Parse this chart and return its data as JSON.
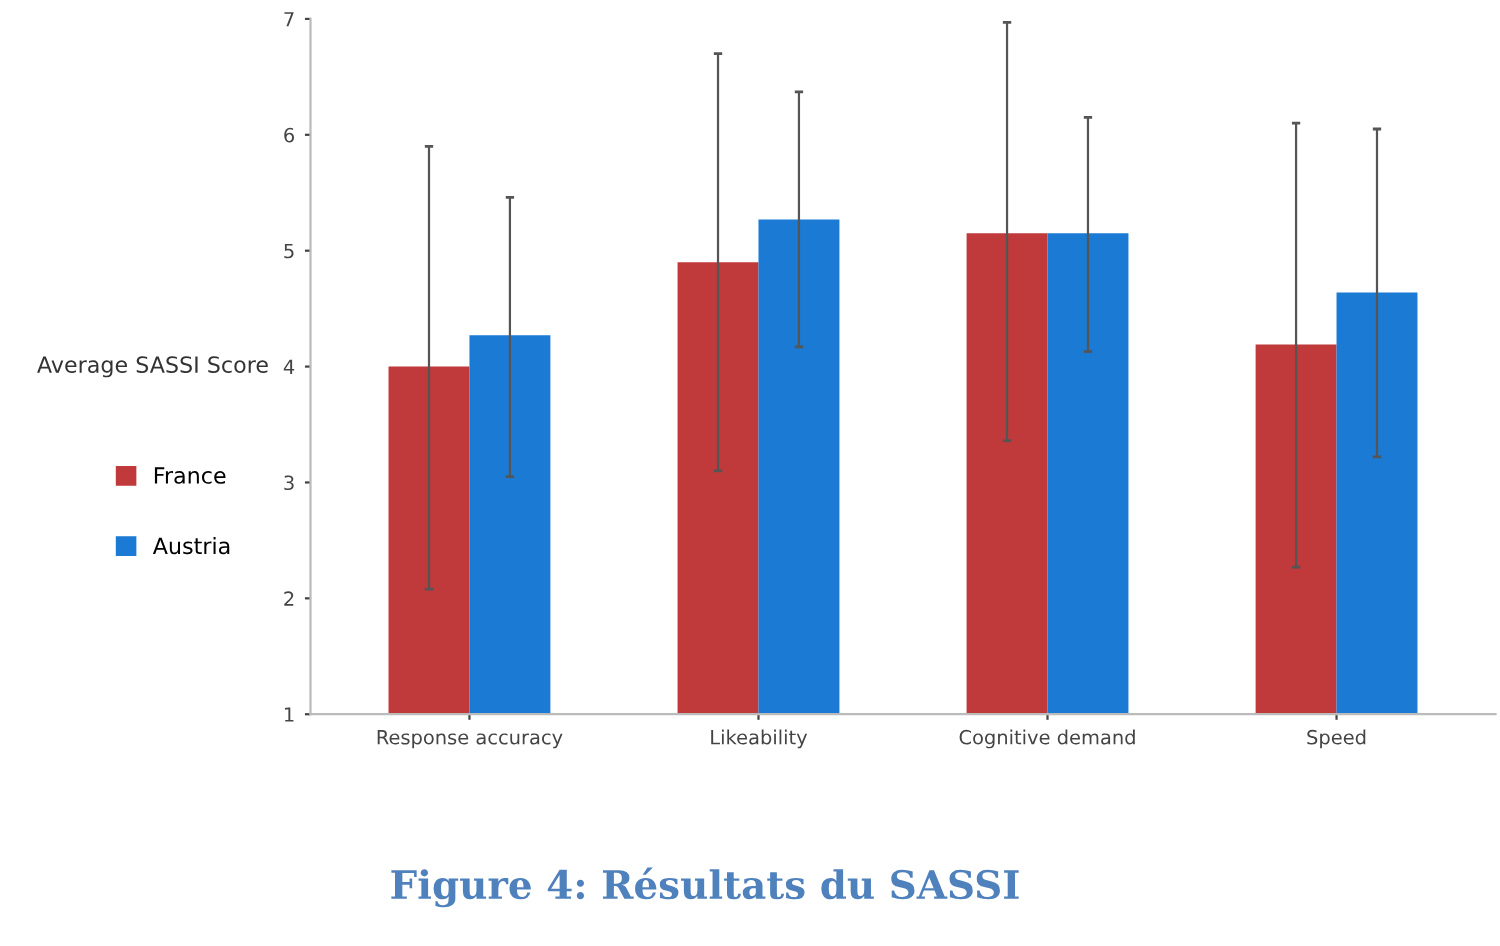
{
  "chart_data": {
    "type": "bar",
    "title": "Figure 4: Résultats du SASSI",
    "ylabel": "Average SASSI Score",
    "categories": [
      "Response accuracy",
      "Likeability",
      "Cognitive demand",
      "Speed"
    ],
    "series": [
      {
        "name": "France",
        "color": "#c0393b",
        "values": [
          4.0,
          4.9,
          5.15,
          4.19
        ],
        "errors": [
          [
            2.08,
            5.9
          ],
          [
            3.1,
            6.7
          ],
          [
            3.36,
            6.97
          ],
          [
            2.27,
            6.1
          ]
        ]
      },
      {
        "name": "Austria",
        "color": "#1a7ad4",
        "values": [
          4.27,
          5.27,
          5.15,
          4.64
        ],
        "errors": [
          [
            3.05,
            5.46
          ],
          [
            4.17,
            6.37
          ],
          [
            4.13,
            6.15
          ],
          [
            3.22,
            6.05
          ]
        ]
      }
    ],
    "ylim": [
      1,
      7
    ],
    "yticks": [
      1,
      2,
      3,
      4,
      5,
      6,
      7
    ],
    "grid": false,
    "legend": "left"
  }
}
